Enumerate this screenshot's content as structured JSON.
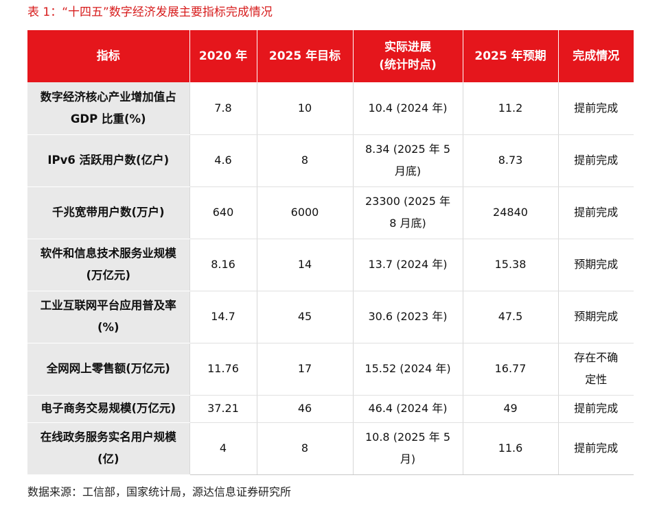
{
  "caption": "表 1：“十四五”数字经济发展主要指标完成情况",
  "table": {
    "headers": {
      "indicator": "指标",
      "y2020": "2020 年",
      "target2025": "2025 年目标",
      "actual_line1": "实际进展",
      "actual_line2": "(统计时点)",
      "forecast2025": "2025 年预期",
      "status": "完成情况"
    },
    "rows": [
      {
        "label_line1": "数字经济核心产业增加值占",
        "label_line2": "GDP 比重(%)",
        "v2020": "7.8",
        "target": "10",
        "actual_line1": "10.4 (2024 年)",
        "actual_line2": "",
        "forecast": "11.2",
        "status_line1": "提前完成",
        "status_line2": ""
      },
      {
        "label_line1": "IPv6 活跃用户数(亿户)",
        "label_line2": "",
        "v2020": "4.6",
        "target": "8",
        "actual_line1": "8.34 (2025 年 5",
        "actual_line2": "月底)",
        "forecast": "8.73",
        "status_line1": "提前完成",
        "status_line2": ""
      },
      {
        "label_line1": "千兆宽带用户数(万户)",
        "label_line2": "",
        "v2020": "640",
        "target": "6000",
        "actual_line1": "23300 (2025 年",
        "actual_line2": "8 月底)",
        "forecast": "24840",
        "status_line1": "提前完成",
        "status_line2": ""
      },
      {
        "label_line1": "软件和信息技术服务业规模",
        "label_line2": "(万亿元)",
        "v2020": "8.16",
        "target": "14",
        "actual_line1": "13.7 (2024 年)",
        "actual_line2": "",
        "forecast": "15.38",
        "status_line1": "预期完成",
        "status_line2": ""
      },
      {
        "label_line1": "工业互联网平台应用普及率",
        "label_line2": "(%)",
        "v2020": "14.7",
        "target": "45",
        "actual_line1": "30.6 (2023 年)",
        "actual_line2": "",
        "forecast": "47.5",
        "status_line1": "预期完成",
        "status_line2": ""
      },
      {
        "label_line1": "全网网上零售额(万亿元)",
        "label_line2": "",
        "v2020": "11.76",
        "target": "17",
        "actual_line1": "15.52 (2024 年)",
        "actual_line2": "",
        "forecast": "16.77",
        "status_line1": "存在不确",
        "status_line2": "定性"
      },
      {
        "label_line1": "电子商务交易规模(万亿元)",
        "label_line2": "",
        "v2020": "37.21",
        "target": "46",
        "actual_line1": "46.4 (2024 年)",
        "actual_line2": "",
        "forecast": "49",
        "status_line1": "提前完成",
        "status_line2": ""
      },
      {
        "label_line1": "在线政务服务实名用户规模",
        "label_line2": "(亿)",
        "v2020": "4",
        "target": "8",
        "actual_line1": "10.8 (2025 年 5",
        "actual_line2": "月)",
        "forecast": "11.6",
        "status_line1": "提前完成",
        "status_line2": ""
      }
    ]
  },
  "source": "数据来源：工信部，国家统计局，源达信息证券研究所"
}
